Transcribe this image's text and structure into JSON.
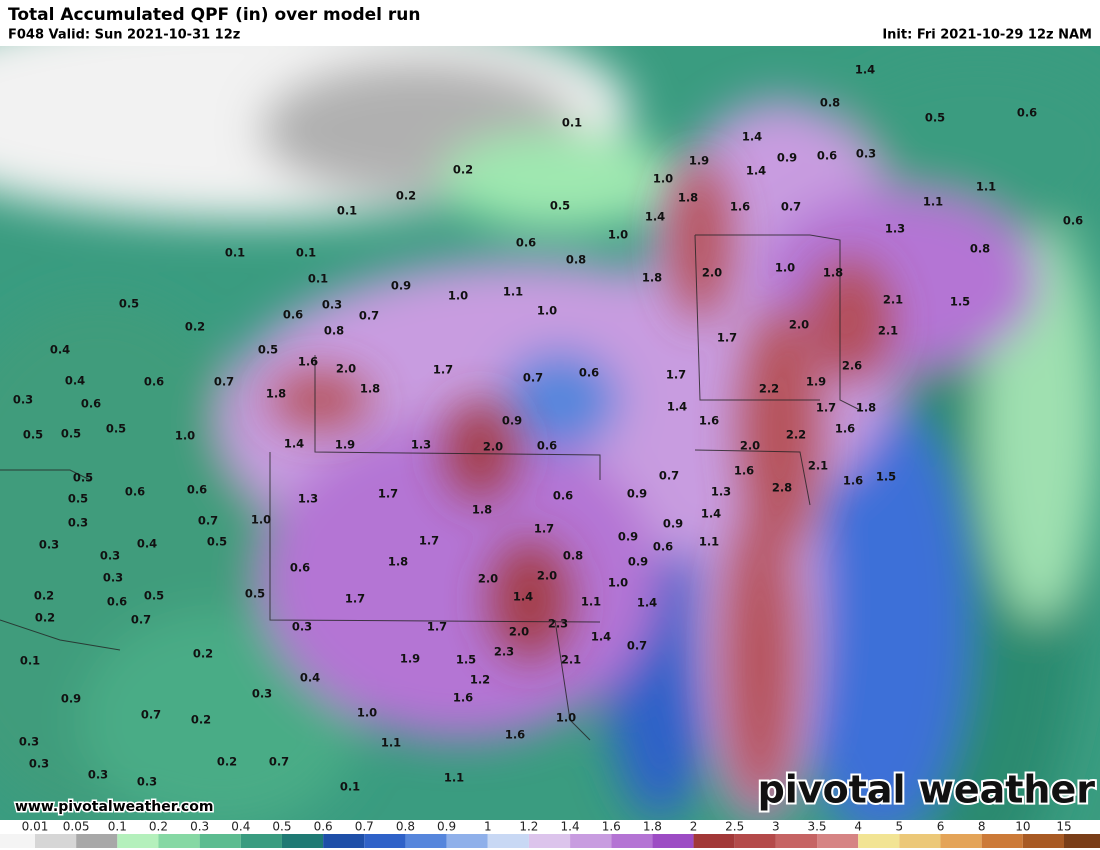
{
  "header": {
    "title": "Total Accumulated QPF (in) over model run",
    "valid": "F048 Valid: Sun 2021-10-31 12z",
    "init": "Init: Fri 2021-10-29 12z NAM"
  },
  "map": {
    "labels": [
      "1.4",
      "0.1",
      "0.8",
      "0.5",
      "0.6",
      "1.4",
      "1.9",
      "0.9",
      "0.6",
      "0.3",
      "1.4",
      "0.2",
      "1.0",
      "0.2",
      "1.8",
      "1.1",
      "0.1",
      "0.5",
      "1.6",
      "0.7",
      "1.1",
      "1.4",
      "0.6",
      "1.3",
      "1.0",
      "0.6",
      "0.1",
      "0.1",
      "0.8",
      "0.8",
      "2.0",
      "1.8",
      "1.0",
      "1.8",
      "0.1",
      "0.9",
      "1.0",
      "1.1",
      "0.5",
      "0.3",
      "1.0",
      "2.1",
      "1.5",
      "0.2",
      "0.6",
      "0.7",
      "2.0",
      "0.8",
      "2.1",
      "0.4",
      "0.5",
      "1.7",
      "1.6",
      "2.0",
      "1.7",
      "2.6",
      "0.4",
      "0.6",
      "0.7",
      "0.7",
      "0.6",
      "1.7",
      "1.8",
      "2.2",
      "1.9",
      "1.8",
      "0.3",
      "0.6",
      "1.4",
      "1.7",
      "1.8",
      "0.5",
      "0.5",
      "0.5",
      "1.0",
      "0.9",
      "1.6",
      "1.6",
      "2.2",
      "1.4",
      "1.9",
      "1.3",
      "2.0",
      "0.6",
      "2.0",
      "0.7",
      "1.6",
      "2.1",
      "1.6",
      "1.5",
      "0.5",
      "0.6",
      "0.6",
      "0.5",
      "1.3",
      "1.7",
      "0.6",
      "0.9",
      "1.3",
      "2.8",
      "0.7",
      "1.0",
      "0.3",
      "1.8",
      "1.4",
      "0.9",
      "1.7",
      "0.5",
      "0.4",
      "1.7",
      "0.9",
      "0.6",
      "1.1",
      "0.3",
      "0.3",
      "0.8",
      "1.8",
      "0.6",
      "0.9",
      "0.3",
      "2.0",
      "2.0",
      "1.0",
      "0.2",
      "0.5",
      "0.5",
      "0.6",
      "1.7",
      "1.4",
      "1.1",
      "1.4",
      "0.2",
      "0.7",
      "0.3",
      "1.7",
      "2.3",
      "2.0",
      "1.4",
      "0.7",
      "0.2",
      "1.9",
      "1.5",
      "2.3",
      "2.1",
      "0.1",
      "0.4",
      "1.2",
      "0.3",
      "0.9",
      "1.6",
      "0.7",
      "0.2",
      "1.0",
      "1.0",
      "1.6",
      "0.3",
      "1.1",
      "0.3",
      "0.2",
      "0.7",
      "1.1",
      "0.3",
      "0.3",
      "0.1"
    ]
  },
  "footer": {
    "website": "www.pivotalweather.com",
    "logo": "pivotal weather"
  },
  "legend": {
    "labels": [
      "0.01",
      "0.05",
      "0.1",
      "0.2",
      "0.3",
      "0.4",
      "0.5",
      "0.6",
      "0.7",
      "0.8",
      "0.9",
      "1",
      "1.2",
      "1.4",
      "1.6",
      "1.8",
      "2",
      "2.5",
      "3",
      "3.5",
      "4",
      "5",
      "6",
      "8",
      "10",
      "15"
    ],
    "colors": [
      "#f4f4f4",
      "#d6d6d6",
      "#a8a8a8",
      "#b4f0bc",
      "#86d8a4",
      "#5cbc90",
      "#3a9c80",
      "#1f7a74",
      "#1e4fa8",
      "#2f62c8",
      "#5686dc",
      "#8fb0ea",
      "#c8d8f4",
      "#dcc4ec",
      "#c89ce0",
      "#b474d4",
      "#9c4cc4",
      "#a23838",
      "#b44a4a",
      "#c66464",
      "#d68484",
      "#f2e494",
      "#ecc878",
      "#e4a458",
      "#cc7a38",
      "#a85a24",
      "#7a3e18"
    ]
  }
}
